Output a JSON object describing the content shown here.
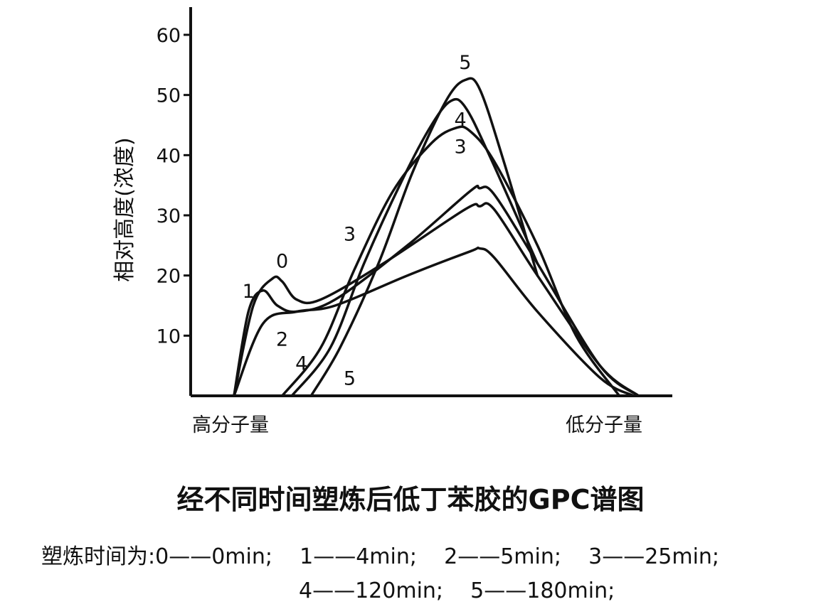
{
  "chart_data": {
    "type": "line",
    "title": "经不同时间塑炼后低丁苯胶的GPC谱图",
    "ylabel": "相对高度(浓度)",
    "x_left_label": "高分子量",
    "x_right_label": "低分子量",
    "ylim": [
      0,
      60
    ],
    "yticks": [
      "10",
      "20",
      "30",
      "40",
      "50",
      "60"
    ],
    "x_note": "x-axis has no numeric scale; x values below are relative position 0 (high molecular weight) to 100 (low molecular weight)",
    "series": [
      {
        "name": "0",
        "points": [
          [
            9,
            0
          ],
          [
            13,
            15
          ],
          [
            17,
            19.5
          ],
          [
            19,
            19
          ],
          [
            22,
            16
          ],
          [
            27,
            16
          ],
          [
            40,
            22
          ],
          [
            57,
            31
          ],
          [
            60,
            31.5
          ],
          [
            63,
            31
          ],
          [
            72,
            20
          ],
          [
            85,
            5
          ],
          [
            93,
            0
          ]
        ]
      },
      {
        "name": "1",
        "points": [
          [
            9,
            0
          ],
          [
            12,
            14
          ],
          [
            15,
            17.5
          ],
          [
            18,
            15
          ],
          [
            22,
            14
          ],
          [
            30,
            16
          ],
          [
            45,
            25
          ],
          [
            58,
            34
          ],
          [
            60,
            34.5
          ],
          [
            63,
            33.5
          ],
          [
            72,
            22
          ],
          [
            85,
            5
          ],
          [
            93,
            0
          ]
        ]
      },
      {
        "name": "2",
        "points": [
          [
            9,
            0
          ],
          [
            15,
            12
          ],
          [
            22,
            14
          ],
          [
            30,
            15
          ],
          [
            45,
            20
          ],
          [
            58,
            24
          ],
          [
            60,
            24.5
          ],
          [
            63,
            23
          ],
          [
            72,
            14
          ],
          [
            85,
            3
          ],
          [
            92,
            0
          ]
        ]
      },
      {
        "name": "3",
        "points": [
          [
            19,
            0
          ],
          [
            27,
            8
          ],
          [
            34,
            21
          ],
          [
            42,
            34
          ],
          [
            50,
            42
          ],
          [
            55,
            44.5
          ],
          [
            58,
            44
          ],
          [
            63,
            39
          ],
          [
            72,
            25
          ],
          [
            80,
            10
          ],
          [
            89,
            0
          ]
        ]
      },
      {
        "name": "4",
        "points": [
          [
            21,
            0
          ],
          [
            29,
            8
          ],
          [
            36,
            22
          ],
          [
            44,
            36
          ],
          [
            50,
            45
          ],
          [
            54,
            49
          ],
          [
            57,
            48
          ],
          [
            62,
            40
          ],
          [
            72,
            22
          ]
        ]
      },
      {
        "name": "5",
        "points": [
          [
            25,
            0
          ],
          [
            31,
            8
          ],
          [
            39,
            22
          ],
          [
            46,
            37
          ],
          [
            53,
            49
          ],
          [
            57,
            52.5
          ],
          [
            60,
            51
          ],
          [
            65,
            39
          ],
          [
            72,
            20
          ]
        ]
      }
    ],
    "annotations": [
      {
        "text": "5",
        "x": 57,
        "y": 55.5
      },
      {
        "text": "4",
        "x": 56,
        "y": 46
      },
      {
        "text": "3",
        "x": 56,
        "y": 41.5
      },
      {
        "text": "3",
        "x": 33,
        "y": 27
      },
      {
        "text": "0",
        "x": 19,
        "y": 22.5
      },
      {
        "text": "1",
        "x": 12,
        "y": 17.5
      },
      {
        "text": "2",
        "x": 19,
        "y": 9.5
      },
      {
        "text": "4",
        "x": 23,
        "y": 5.5
      },
      {
        "text": "5",
        "x": 33,
        "y": 3
      }
    ]
  },
  "legend": {
    "row1": "塑炼时间为:0——0min;    1——4min;    2——5min;    3——25min;",
    "row2": "4——120min;    5——180min;"
  }
}
